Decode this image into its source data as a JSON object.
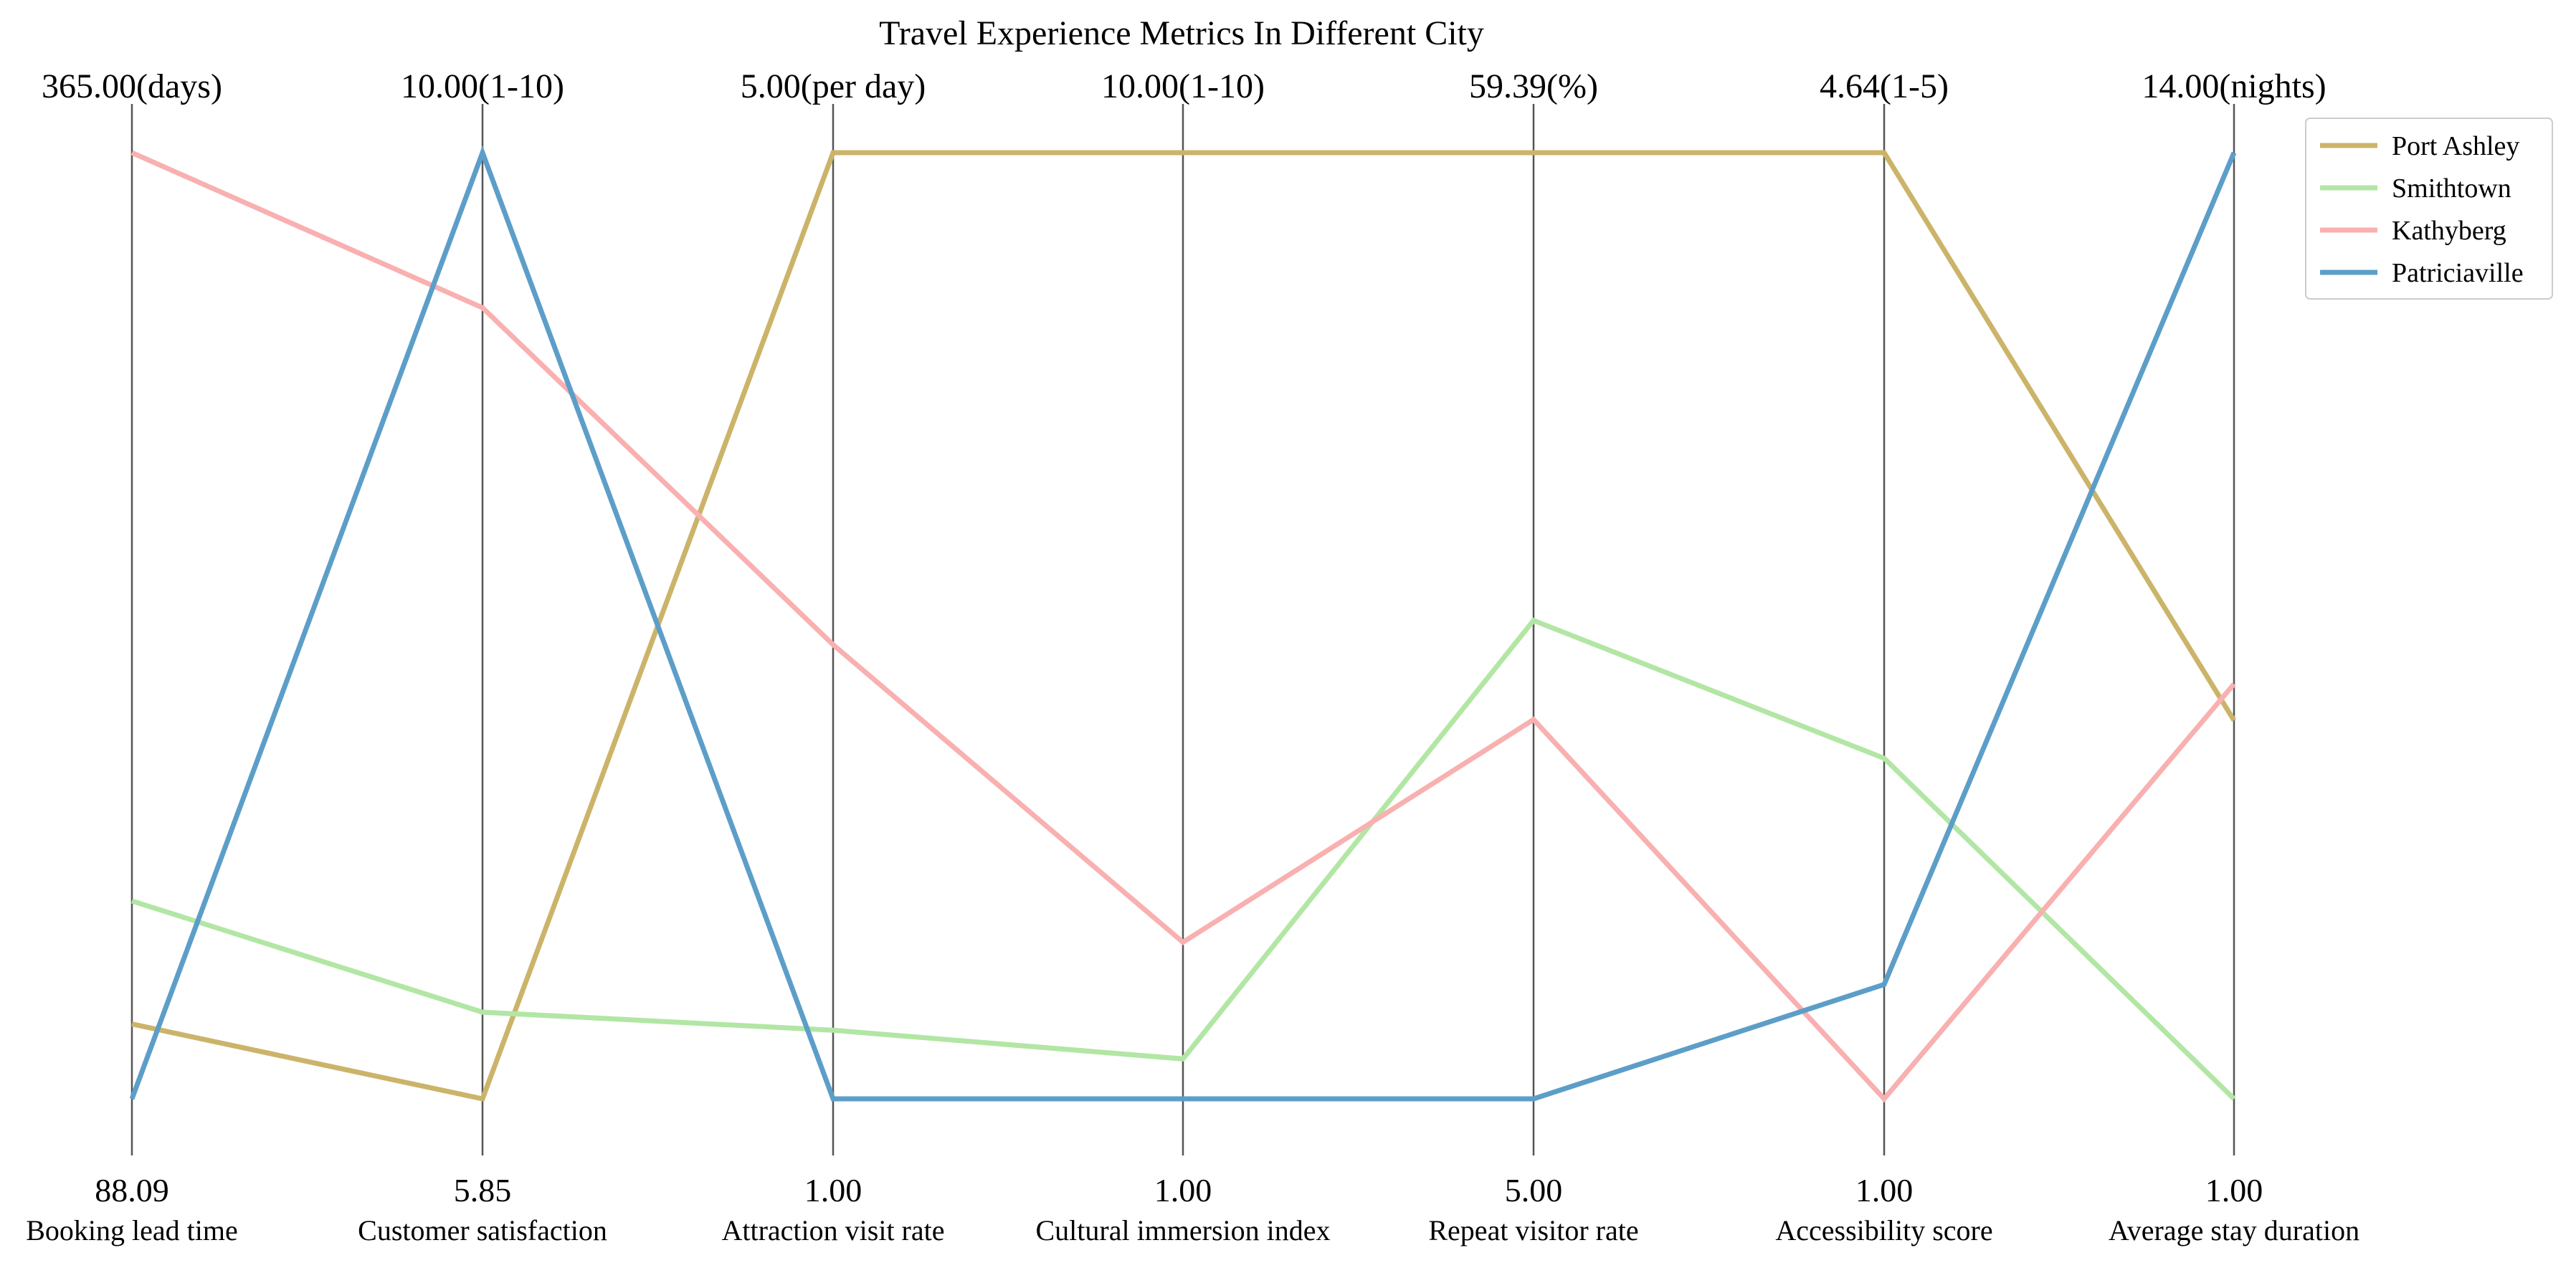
{
  "chart_data": {
    "type": "parallel-coordinates",
    "title": "Travel Experience Metrics In Different City",
    "axes": [
      {
        "name": "Booking lead time",
        "min": 88.09,
        "max": 365.0,
        "min_label": "88.09",
        "max_label": "365.00(days)"
      },
      {
        "name": "Customer satisfaction",
        "min": 5.85,
        "max": 10.0,
        "min_label": "5.85",
        "max_label": "10.00(1-10)"
      },
      {
        "name": "Attraction visit rate",
        "min": 1.0,
        "max": 5.0,
        "min_label": "1.00",
        "max_label": "5.00(per day)"
      },
      {
        "name": "Cultural immersion index",
        "min": 1.0,
        "max": 10.0,
        "min_label": "1.00",
        "max_label": "10.00(1-10)"
      },
      {
        "name": "Repeat visitor rate",
        "min": 5.0,
        "max": 59.39,
        "min_label": "5.00",
        "max_label": "59.39(%)"
      },
      {
        "name": "Accessibility score",
        "min": 1.0,
        "max": 4.64,
        "min_label": "1.00",
        "max_label": "4.64(1-5)"
      },
      {
        "name": "Average stay duration",
        "min": 1.0,
        "max": 14.0,
        "min_label": "1.00",
        "max_label": "14.00(nights)"
      }
    ],
    "series": [
      {
        "name": "Port Ashley",
        "color": "#cbb46a",
        "values": [
          110,
          5.85,
          5.0,
          10.0,
          59.39,
          4.64,
          6.2
        ]
      },
      {
        "name": "Smithtown",
        "color": "#b2e6a4",
        "values": [
          146,
          6.23,
          1.29,
          1.38,
          32.5,
          2.31,
          1.0
        ]
      },
      {
        "name": "Kathyberg",
        "color": "#f9b0b0",
        "values": [
          365,
          9.32,
          2.92,
          2.49,
          26.8,
          1.0,
          6.7
        ]
      },
      {
        "name": "Patriciaville",
        "color": "#5c9ec8",
        "values": [
          88.09,
          10.0,
          1.0,
          1.0,
          5.0,
          1.44,
          14.0
        ]
      }
    ],
    "legend_position": "top-right",
    "grid": false
  }
}
